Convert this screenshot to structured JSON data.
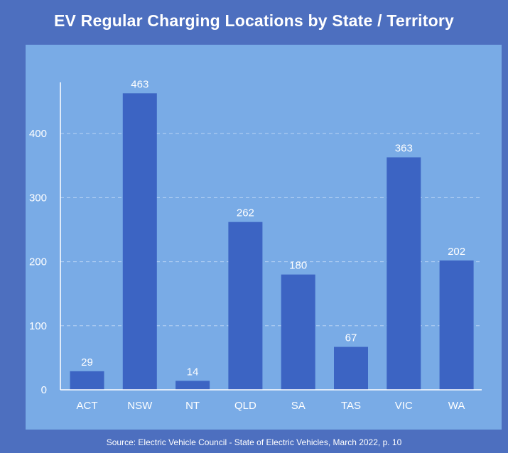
{
  "chart_data": {
    "type": "bar",
    "title": "EV Regular Charging Locations by State / Territory",
    "source": "Source: Electric Vehicle Council - State of Electric Vehicles, March 2022, p. 10",
    "categories": [
      "ACT",
      "NSW",
      "NT",
      "QLD",
      "SA",
      "TAS",
      "VIC",
      "WA"
    ],
    "values": [
      29,
      463,
      14,
      262,
      180,
      67,
      363,
      202
    ],
    "y_ticks": [
      0,
      100,
      200,
      300,
      400
    ],
    "ylim": [
      0,
      480
    ],
    "grid": "dashed horizontal",
    "colors": {
      "bar": "#3c64c3",
      "panel": "#79abe6",
      "background": "#4d6fbf",
      "text": "#ffffff",
      "grid": "#b9d3f3"
    }
  }
}
